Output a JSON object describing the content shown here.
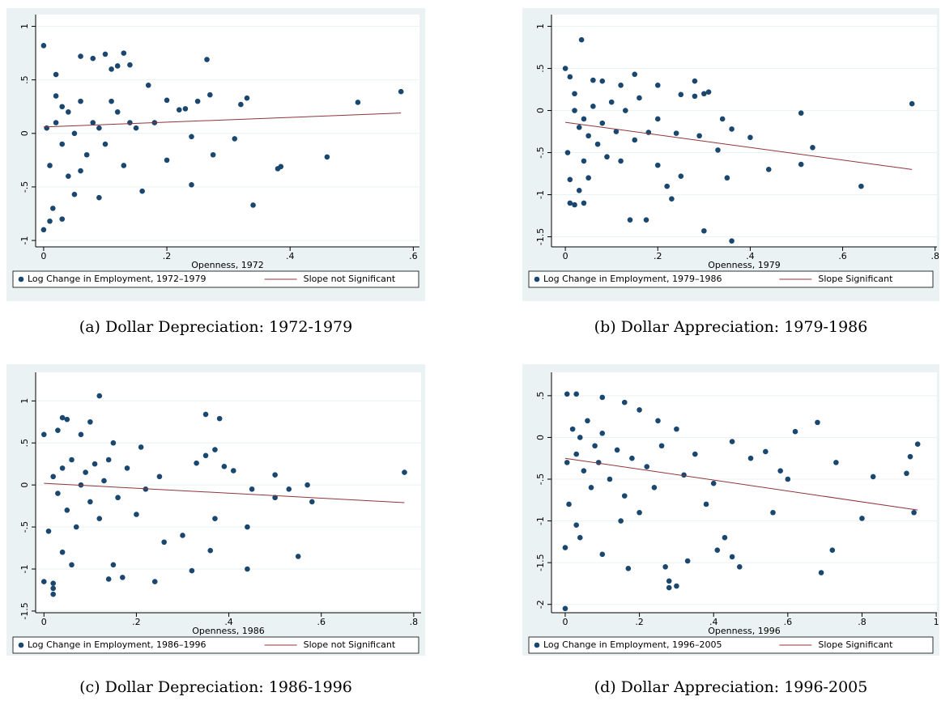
{
  "chart_data": [
    {
      "type": "scatter",
      "caption": "(a) Dollar Depreciation: 1972-1979",
      "xlabel": "Openness, 1972",
      "xlim": [
        -0.013,
        0.61
      ],
      "ylim": [
        -1.06,
        1.11
      ],
      "xticks": [
        0,
        {
          "value": 0.2,
          "label": ".2"
        },
        {
          "value": 0.4,
          "label": ".4"
        },
        {
          "value": 0.6,
          "label": ".6"
        }
      ],
      "yticks": [
        {
          "value": -1,
          "label": "-1"
        },
        {
          "value": -0.5,
          "label": "-.5"
        },
        0,
        {
          "value": 0.5,
          "label": ".5"
        },
        1
      ],
      "grid": true,
      "series": [
        {
          "name": "Log Change in Employment, 1972–1979",
          "color": "#1a476f",
          "type": "scatter",
          "x": [
            0,
            0.13,
            0.1,
            0.265,
            0.58,
            0.51,
            0.33,
            0.32,
            0.27,
            0.25,
            0.46,
            0.38,
            0.385,
            0.34,
            0.24,
            0.31,
            0.275,
            0.24,
            0.2,
            0.16,
            0.09,
            0,
            0.01,
            0.03,
            0.015,
            0.05,
            0.12,
            0.14,
            0.11,
            0.06,
            0.08,
            0.02,
            0.17,
            0.2,
            0.22,
            0.23,
            0.18,
            0.15,
            0.02,
            0.03,
            0.04,
            0.05,
            0.06,
            0.07,
            0.08,
            0.01,
            0.02,
            0.04,
            0.1,
            0.12,
            0.09,
            0.13,
            0.14,
            0.005,
            0.03,
            0.06,
            0.11
          ],
          "values": [
            0.82,
            0.75,
            0.74,
            0.69,
            0.39,
            0.29,
            0.33,
            0.27,
            0.36,
            0.3,
            -0.22,
            -0.33,
            -0.31,
            -0.67,
            -0.48,
            -0.05,
            -0.2,
            -0.03,
            -0.25,
            -0.54,
            -0.6,
            -0.9,
            -0.82,
            -0.8,
            -0.7,
            -0.57,
            0.63,
            0.64,
            0.6,
            0.72,
            0.7,
            0.55,
            0.45,
            0.31,
            0.22,
            0.23,
            0.1,
            0.05,
            0.1,
            -0.1,
            0.2,
            0,
            0.3,
            -0.2,
            0.1,
            -0.3,
            0.35,
            -0.4,
            -0.1,
            0.2,
            0.05,
            -0.3,
            0.1,
            0.05,
            0.25,
            -0.35,
            0.3
          ]
        },
        {
          "name": "Slope not Significant",
          "color": "#90353b",
          "type": "line",
          "x": [
            0,
            0.58
          ],
          "values": [
            0.06,
            0.19
          ]
        }
      ]
    },
    {
      "type": "scatter",
      "caption": "(b) Dollar Appreciation: 1979-1986",
      "xlabel": "Openness, 1979",
      "xlim": [
        -0.03,
        0.804
      ],
      "ylim": [
        -1.62,
        1.14
      ],
      "xticks": [
        0,
        {
          "value": 0.2,
          "label": ".2"
        },
        {
          "value": 0.4,
          "label": ".4"
        },
        {
          "value": 0.6,
          "label": ".6"
        },
        {
          "value": 0.8,
          "label": ".8"
        }
      ],
      "yticks": [
        {
          "value": -1.5,
          "label": "-1.5"
        },
        {
          "value": -1,
          "label": "-1"
        },
        {
          "value": -0.5,
          "label": "-.5"
        },
        0,
        {
          "value": 0.5,
          "label": ".5"
        },
        1
      ],
      "grid": true,
      "series": [
        {
          "name": "Log Change in Employment, 1979–1986",
          "color": "#1a476f",
          "type": "scatter",
          "x": [
            0.035,
            0,
            0.75,
            0.51,
            0.535,
            0.51,
            0.64,
            0.44,
            0.4,
            0.36,
            0.36,
            0.35,
            0.3,
            0.34,
            0.28,
            0.3,
            0.31,
            0.28,
            0.25,
            0.2,
            0.175,
            0.14,
            0.02,
            0.01,
            0.04,
            0.03,
            0.01,
            0.05,
            0.23,
            0.22,
            0.25,
            0.2,
            0.33,
            0.29,
            0.24,
            0.18,
            0.15,
            0.12,
            0.08,
            0.06,
            0.01,
            0.02,
            0.03,
            0.04,
            0.05,
            0.06,
            0.07,
            0.08,
            0.09,
            0.1,
            0.11,
            0.12,
            0.13,
            0.15,
            0.005,
            0.02,
            0.04,
            0.16,
            0.2
          ],
          "values": [
            0.84,
            0.5,
            0.08,
            -0.03,
            -0.44,
            -0.64,
            -0.9,
            -0.7,
            -0.32,
            -0.22,
            -1.55,
            -0.8,
            -1.43,
            -0.1,
            0.35,
            0.2,
            0.22,
            0.17,
            0.19,
            0.3,
            -1.3,
            -1.3,
            -1.12,
            -1.1,
            -1.1,
            -0.95,
            -0.82,
            -0.8,
            -1.05,
            -0.9,
            -0.78,
            -0.65,
            -0.47,
            -0.3,
            -0.27,
            -0.26,
            0.43,
            0.3,
            0.35,
            0.36,
            0.4,
            0,
            -0.2,
            -0.1,
            -0.3,
            0.05,
            -0.4,
            -0.15,
            -0.55,
            0.1,
            -0.25,
            -0.6,
            0,
            -0.35,
            -0.5,
            0.2,
            -0.6,
            0.15,
            -0.1
          ]
        },
        {
          "name": "Slope Significant",
          "color": "#90353b",
          "type": "line",
          "x": [
            0,
            0.75
          ],
          "values": [
            -0.14,
            -0.7
          ]
        }
      ]
    },
    {
      "type": "scatter",
      "caption": "(c) Dollar Depreciation: 1986-1996",
      "xlabel": "Openness, 1986",
      "xlim": [
        -0.018,
        0.816
      ],
      "ylim": [
        -1.52,
        1.34
      ],
      "xticks": [
        0,
        {
          "value": 0.2,
          "label": ".2"
        },
        {
          "value": 0.4,
          "label": ".4"
        },
        {
          "value": 0.6,
          "label": ".6"
        },
        {
          "value": 0.8,
          "label": ".8"
        }
      ],
      "yticks": [
        {
          "value": -1.5,
          "label": "-1.5"
        },
        {
          "value": -1,
          "label": "-1"
        },
        {
          "value": -0.5,
          "label": "-.5"
        },
        0,
        {
          "value": 0.5,
          "label": ".5"
        },
        1
      ],
      "grid": true,
      "series": [
        {
          "name": "Log Change in Employment, 1986–1996",
          "color": "#1a476f",
          "type": "scatter",
          "x": [
            0.12,
            0.35,
            0.38,
            0.04,
            0.05,
            0.78,
            0.58,
            0.57,
            0.55,
            0.5,
            0.5,
            0.53,
            0.45,
            0.44,
            0.44,
            0.32,
            0.24,
            0.17,
            0.14,
            0.15,
            0,
            0.02,
            0.02,
            0.02,
            0.36,
            0.37,
            0.35,
            0.37,
            0.39,
            0.41,
            0.3,
            0.26,
            0.33,
            0.25,
            0.21,
            0.15,
            0.1,
            0.08,
            0,
            0.03,
            0.02,
            0.03,
            0.04,
            0.05,
            0.06,
            0.07,
            0.08,
            0.09,
            0.1,
            0.11,
            0.12,
            0.13,
            0.14,
            0.16,
            0.18,
            0.2,
            0.22,
            0.01,
            0.04,
            0.06
          ],
          "values": [
            1.06,
            0.84,
            0.79,
            0.8,
            0.78,
            0.15,
            -0.2,
            0,
            -0.85,
            0.12,
            -0.15,
            -0.05,
            -0.05,
            -0.5,
            -1,
            -1.02,
            -1.15,
            -1.1,
            -1.12,
            -0.95,
            -1.15,
            -1.17,
            -1.3,
            -1.23,
            -0.78,
            -0.4,
            0.35,
            0.42,
            0.22,
            0.17,
            -0.6,
            -0.68,
            0.26,
            0.1,
            0.45,
            0.5,
            0.75,
            0.6,
            0.6,
            0.65,
            0.1,
            -0.1,
            0.2,
            -0.3,
            0.3,
            -0.5,
            0,
            0.15,
            -0.2,
            0.25,
            -0.4,
            0.05,
            0.3,
            -0.15,
            0.2,
            -0.35,
            -0.05,
            -0.55,
            -0.8,
            -0.95
          ]
        },
        {
          "name": "Slope not Significant",
          "color": "#90353b",
          "type": "line",
          "x": [
            0,
            0.78
          ],
          "values": [
            0.02,
            -0.21
          ]
        }
      ]
    },
    {
      "type": "scatter",
      "caption": "(d) Dollar Appreciation: 1996-2005",
      "xlabel": "Openness, 1996",
      "xlim": [
        -0.037,
        1.002
      ],
      "ylim": [
        -2.1,
        0.78
      ],
      "xticks": [
        0,
        {
          "value": 0.2,
          "label": ".2"
        },
        {
          "value": 0.4,
          "label": ".4"
        },
        {
          "value": 0.6,
          "label": ".6"
        },
        {
          "value": 0.8,
          "label": ".8"
        },
        1
      ],
      "yticks": [
        {
          "value": -2,
          "label": "-2"
        },
        {
          "value": -1.5,
          "label": "-1.5"
        },
        {
          "value": -1,
          "label": "-1"
        },
        {
          "value": -0.5,
          "label": "-.5"
        },
        0,
        {
          "value": 0.5,
          "label": ".5"
        }
      ],
      "grid": true,
      "series": [
        {
          "name": "Log Change in Employment, 1996–2005",
          "color": "#1a476f",
          "type": "scatter",
          "x": [
            0,
            0,
            0.005,
            0.03,
            0.95,
            0.93,
            0.92,
            0.94,
            0.8,
            0.83,
            0.73,
            0.72,
            0.69,
            0.68,
            0.62,
            0.6,
            0.58,
            0.56,
            0.5,
            0.54,
            0.45,
            0.47,
            0.45,
            0.43,
            0.41,
            0.33,
            0.3,
            0.28,
            0.28,
            0.27,
            0.17,
            0.1,
            0.04,
            0.03,
            0.1,
            0.16,
            0.2,
            0.25,
            0.3,
            0.35,
            0.4,
            0.38,
            0.2,
            0.15,
            0.02,
            0.03,
            0.04,
            0.05,
            0.06,
            0.07,
            0.08,
            0.09,
            0.1,
            0.12,
            0.14,
            0.16,
            0.18,
            0.22,
            0.24,
            0.26,
            0.32,
            0.01,
            0.005
          ],
          "values": [
            -2.05,
            -1.32,
            0.52,
            0.52,
            -0.08,
            -0.23,
            -0.43,
            -0.9,
            -0.97,
            -0.47,
            -0.3,
            -1.35,
            -1.62,
            0.18,
            0.07,
            -0.5,
            -0.4,
            -0.9,
            -0.25,
            -0.17,
            -0.05,
            -1.55,
            -1.43,
            -1.2,
            -1.35,
            -1.48,
            -1.78,
            -1.72,
            -1.8,
            -1.55,
            -1.57,
            -1.4,
            -1.2,
            -1.05,
            0.48,
            0.42,
            0.33,
            0.2,
            0.1,
            -0.2,
            -0.55,
            -0.8,
            -0.9,
            -1,
            0.1,
            -0.2,
            0,
            -0.4,
            0.2,
            -0.6,
            -0.1,
            -0.3,
            0.05,
            -0.5,
            -0.15,
            -0.7,
            -0.25,
            -0.35,
            -0.6,
            -0.1,
            -0.45,
            -0.8,
            -0.3
          ]
        },
        {
          "name": "Slope Significant",
          "color": "#90353b",
          "type": "line",
          "x": [
            0,
            0.95
          ],
          "values": [
            -0.25,
            -0.87
          ]
        }
      ]
    }
  ]
}
